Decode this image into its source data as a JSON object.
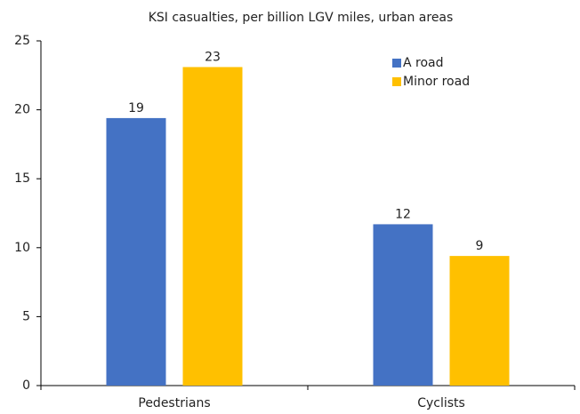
{
  "chart_data": {
    "type": "bar",
    "title": "KSI casualties, per billion LGV miles, urban areas",
    "categories": [
      "Pedestrians",
      "Cyclists"
    ],
    "series": [
      {
        "name": "A road",
        "color": "#4472c4",
        "values": [
          19.4,
          11.7
        ],
        "value_labels": [
          "19",
          "12"
        ]
      },
      {
        "name": "Minor road",
        "color": "#ffc000",
        "values": [
          23.1,
          9.4
        ],
        "value_labels": [
          "23",
          "9"
        ]
      }
    ],
    "ylim": [
      0,
      25
    ],
    "yticks": [
      0,
      5,
      10,
      15,
      20,
      25
    ],
    "legend": "upper right"
  }
}
